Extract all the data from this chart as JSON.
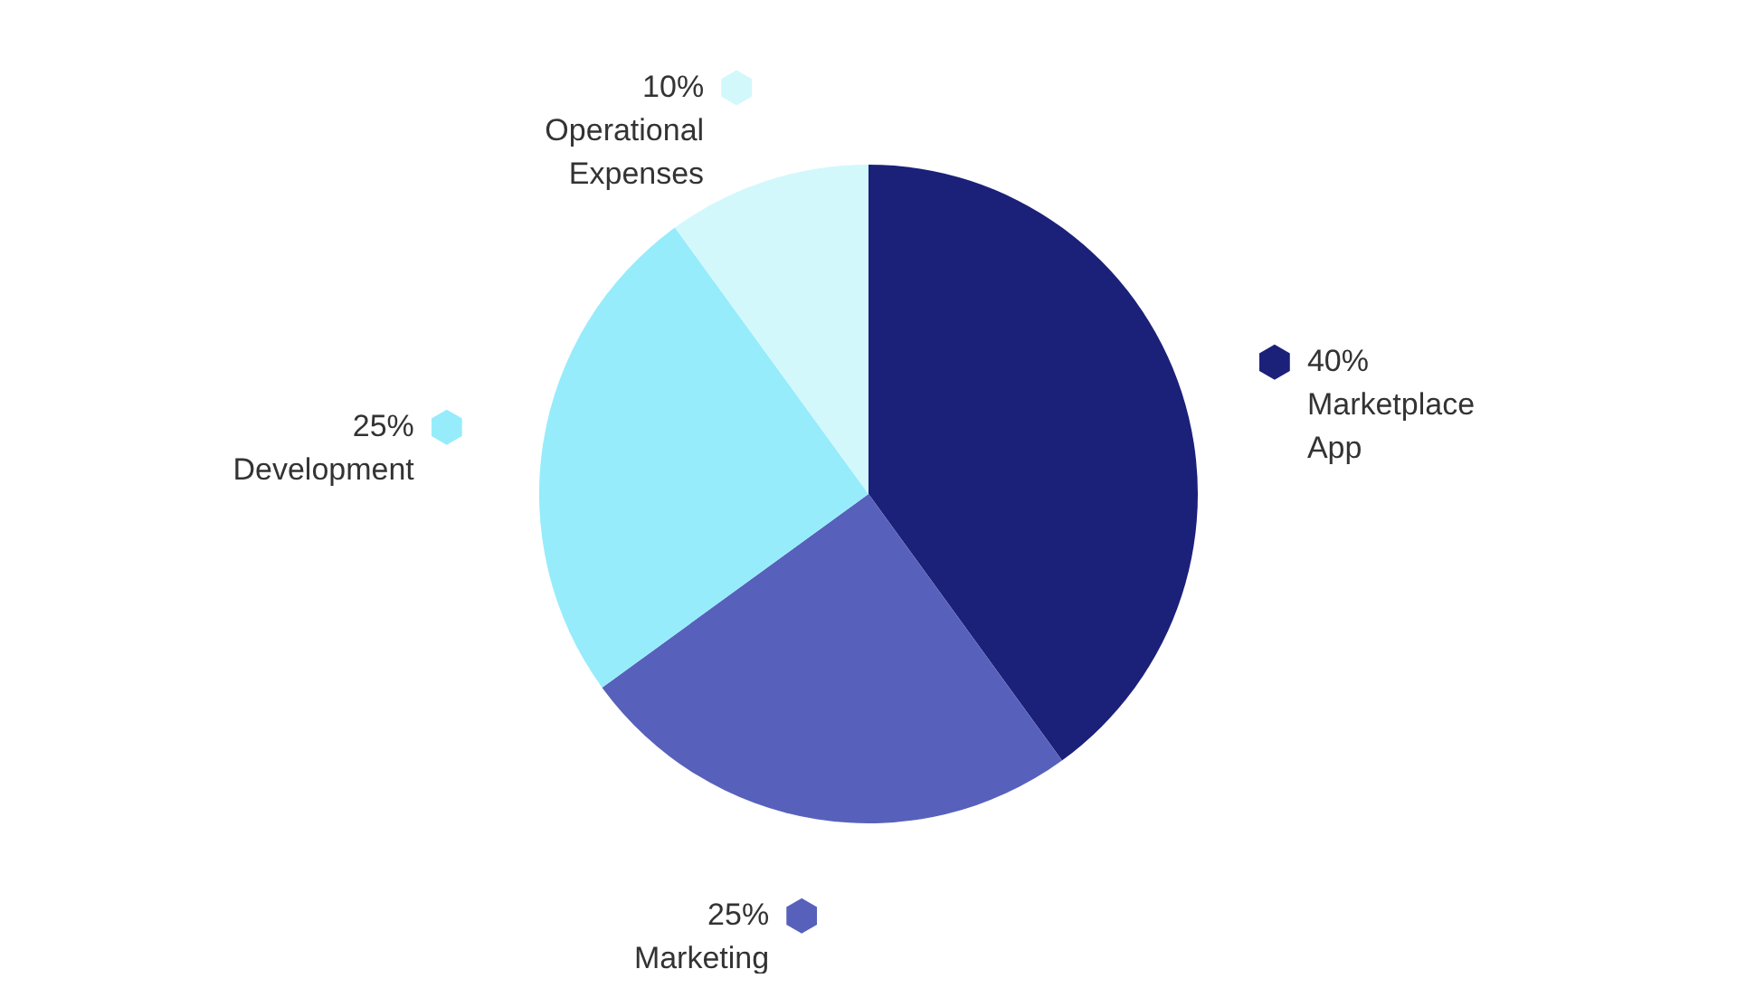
{
  "chart_data": {
    "type": "pie",
    "categories": [
      "Marketplace App",
      "Marketing",
      "Development",
      "Operational Expenses"
    ],
    "values": [
      40,
      25,
      25,
      10
    ],
    "colors": [
      "#1b2079",
      "#5761bb",
      "#96ecfb",
      "#d2f8fc"
    ],
    "value_labels": [
      "40%",
      "25%",
      "25%",
      "10%"
    ]
  }
}
